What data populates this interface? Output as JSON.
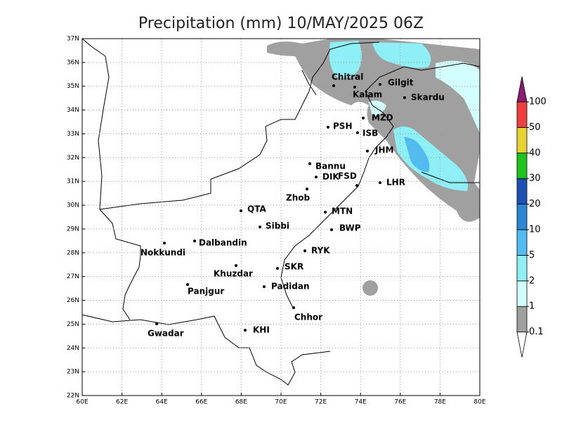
{
  "title": "Precipitation (mm) 10/MAY/2025 06Z",
  "map": {
    "xlim": [
      60,
      80
    ],
    "ylim": [
      22,
      37
    ],
    "xticks": [
      {
        "value": 60,
        "label": "60E"
      },
      {
        "value": 62,
        "label": "62E"
      },
      {
        "value": 64,
        "label": "64E"
      },
      {
        "value": 66,
        "label": "66E"
      },
      {
        "value": 68,
        "label": "68E"
      },
      {
        "value": 70,
        "label": "70E"
      },
      {
        "value": 72,
        "label": "72E"
      },
      {
        "value": 74,
        "label": "74E"
      },
      {
        "value": 76,
        "label": "76E"
      },
      {
        "value": 78,
        "label": "78E"
      },
      {
        "value": 80,
        "label": "80E"
      }
    ],
    "yticks": [
      {
        "value": 22,
        "label": "22N"
      },
      {
        "value": 23,
        "label": "23N"
      },
      {
        "value": 24,
        "label": "24N"
      },
      {
        "value": 25,
        "label": "25N"
      },
      {
        "value": 26,
        "label": "26N"
      },
      {
        "value": 27,
        "label": "27N"
      },
      {
        "value": 28,
        "label": "28N"
      },
      {
        "value": 29,
        "label": "29N"
      },
      {
        "value": 30,
        "label": "30N"
      },
      {
        "value": 31,
        "label": "31N"
      },
      {
        "value": 32,
        "label": "32N"
      },
      {
        "value": 33,
        "label": "33N"
      },
      {
        "value": 34,
        "label": "34N"
      },
      {
        "value": 35,
        "label": "35N"
      },
      {
        "value": 36,
        "label": "36N"
      },
      {
        "value": 37,
        "label": "37N"
      }
    ],
    "grid": true,
    "cities": [
      "Chitral",
      "Gilgit",
      "Kalam",
      "Skardu",
      "MZD",
      "PSH",
      "ISB",
      "JHM",
      "Bannu",
      "DIK",
      "FSD",
      "LHR",
      "Zhob",
      "QTA",
      "MTN",
      "Sibbi",
      "BWP",
      "Nokkundi",
      "Dalbandin",
      "RYK",
      "Khuzdar",
      "SKR",
      "Panjgur",
      "Padidan",
      "Chhor",
      "Gwadar",
      "KHI"
    ]
  },
  "colorbar": {
    "levels": [
      0.1,
      1,
      2,
      5,
      10,
      20,
      30,
      40,
      50,
      100
    ],
    "colors": [
      "#ffffff",
      "#a0a0a0",
      "#d2fffe",
      "#8ef0f6",
      "#52bbef",
      "#2c86d4",
      "#1f50b4",
      "#1ec31e",
      "#e6d235",
      "#ef4040",
      "#8a1d6f"
    ]
  }
}
